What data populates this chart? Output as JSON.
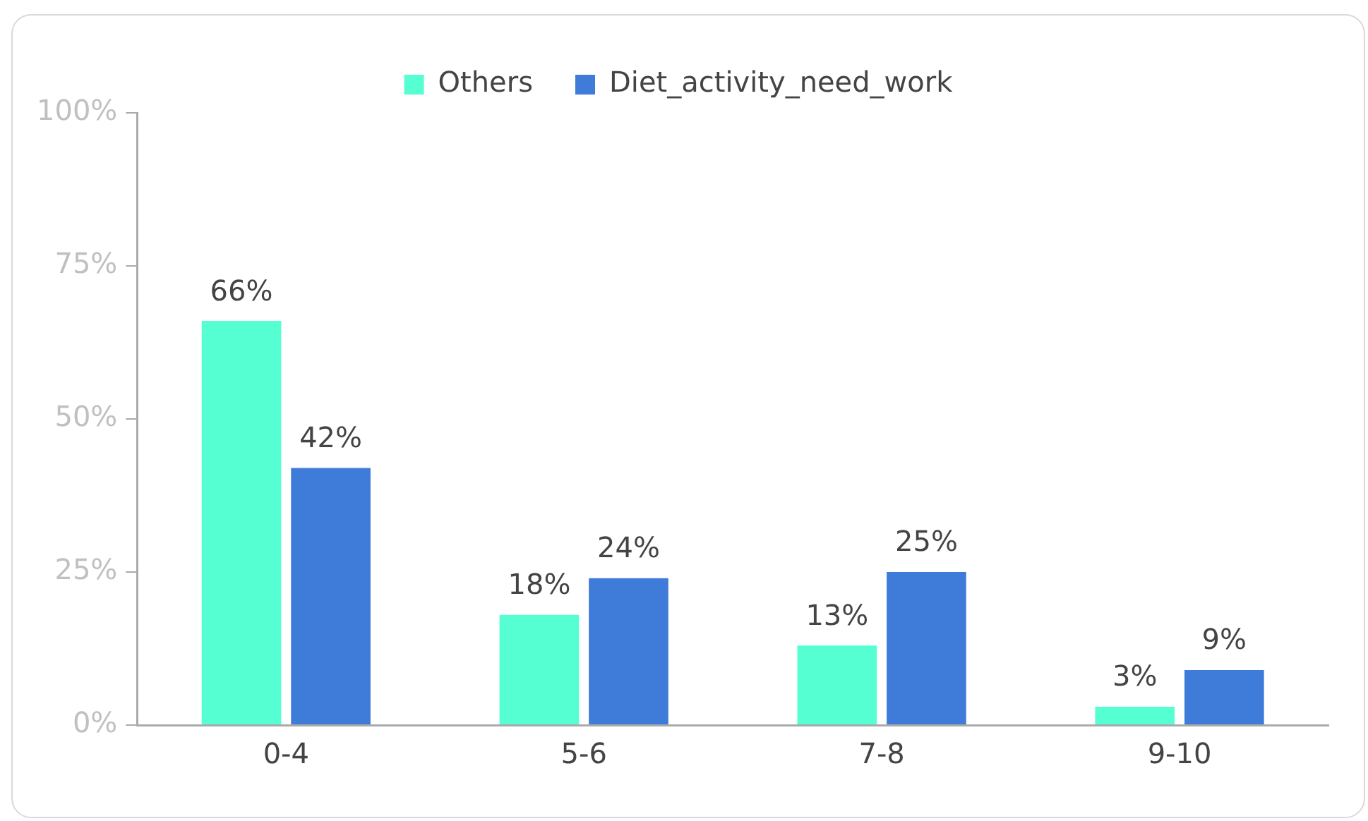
{
  "chart_data": {
    "type": "bar",
    "categories": [
      "0-4",
      "5-6",
      "7-8",
      "9-10"
    ],
    "series": [
      {
        "name": "Others",
        "color": "#55ffd2",
        "values": [
          66,
          18,
          13,
          3
        ],
        "value_labels": [
          "66%",
          "18%",
          "13%",
          "3%"
        ]
      },
      {
        "name": "Diet_activity_need_work",
        "color": "#3f7bd9",
        "values": [
          42,
          24,
          25,
          9
        ],
        "value_labels": [
          "42%",
          "24%",
          "25%",
          "9%"
        ]
      }
    ],
    "ylim": [
      0,
      100
    ],
    "yticks": [
      {
        "value": 0,
        "label": "0%"
      },
      {
        "value": 25,
        "label": "25%"
      },
      {
        "value": 50,
        "label": "50%"
      },
      {
        "value": 75,
        "label": "75%"
      },
      {
        "value": 100,
        "label": "100%"
      }
    ],
    "grid": false,
    "legend": "top"
  }
}
